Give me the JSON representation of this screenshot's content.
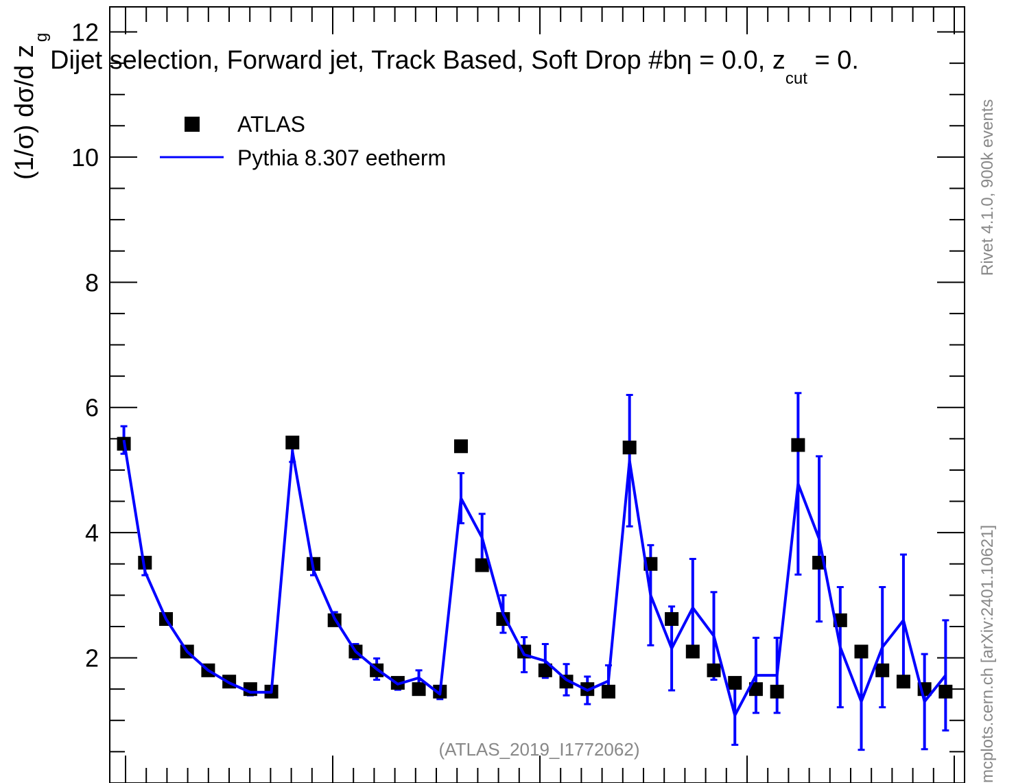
{
  "chart_data": {
    "type": "scatter",
    "title": "Dijet selection, Forward jet, Track Based, Soft Drop #b",
    "title_eq": "η = 0.0, z",
    "title_sub": "cut",
    "title_tail": " = 0.",
    "ylabel": "(1/σ) dσ/d z",
    "ylabel_sub": "g",
    "source_note": "(ATLAS_2019_I1772062)",
    "side_label_top": "Rivet 4.1.0,  900k events",
    "side_label_bottom": "mcplots.cern.ch [arXiv:2401.10621]",
    "ylim": [
      0,
      12.4
    ],
    "y_ticks": [
      2,
      4,
      6,
      8,
      10,
      12
    ],
    "y_minor_step": 0.5,
    "legend_position": "top-left",
    "x": [
      1,
      2,
      3,
      4,
      5,
      6,
      7,
      8,
      9,
      10,
      11,
      12,
      13,
      14,
      15,
      16,
      17,
      18,
      19,
      20,
      21,
      22,
      23,
      24,
      25,
      26,
      27,
      28,
      29,
      30,
      31,
      32,
      33,
      34,
      35,
      36,
      37,
      38,
      39,
      40
    ],
    "xlim": [
      0.33,
      40.9
    ],
    "series": [
      {
        "name": "ATLAS",
        "style": "markers",
        "color": "#000000",
        "values": [
          5.42,
          3.52,
          2.62,
          2.1,
          1.8,
          1.62,
          1.5,
          1.46,
          5.44,
          3.5,
          2.6,
          2.1,
          1.8,
          1.6,
          1.5,
          1.46,
          5.38,
          3.48,
          2.62,
          2.1,
          1.8,
          1.62,
          1.5,
          1.46,
          5.36,
          3.5,
          2.62,
          2.1,
          1.8,
          1.6,
          1.5,
          1.46,
          5.4,
          3.52,
          2.6,
          2.1,
          1.8,
          1.62,
          1.5,
          1.46
        ]
      },
      {
        "name": "Pythia 8.307 eetherm",
        "style": "line",
        "color": "#0000ff",
        "values": [
          5.48,
          3.38,
          2.62,
          2.1,
          1.8,
          1.6,
          1.45,
          1.45,
          5.3,
          3.4,
          2.63,
          2.1,
          1.82,
          1.58,
          1.68,
          1.42,
          4.55,
          3.92,
          2.7,
          2.05,
          1.95,
          1.65,
          1.48,
          1.63,
          5.15,
          3.0,
          2.15,
          2.8,
          2.35,
          1.08,
          1.72,
          1.72,
          4.78,
          3.9,
          2.17,
          1.3,
          2.17,
          2.6,
          1.3,
          1.72
        ],
        "errors": [
          0.22,
          0.06,
          0.05,
          0.04,
          0.04,
          0.05,
          0.05,
          0.05,
          0.17,
          0.08,
          0.1,
          0.12,
          0.17,
          0.09,
          0.12,
          0.08,
          0.4,
          0.38,
          0.3,
          0.28,
          0.27,
          0.25,
          0.22,
          0.25,
          1.05,
          0.8,
          0.67,
          0.78,
          0.7,
          0.47,
          0.6,
          0.6,
          1.45,
          1.32,
          0.96,
          0.77,
          0.96,
          1.05,
          0.76,
          0.88
        ]
      }
    ]
  }
}
